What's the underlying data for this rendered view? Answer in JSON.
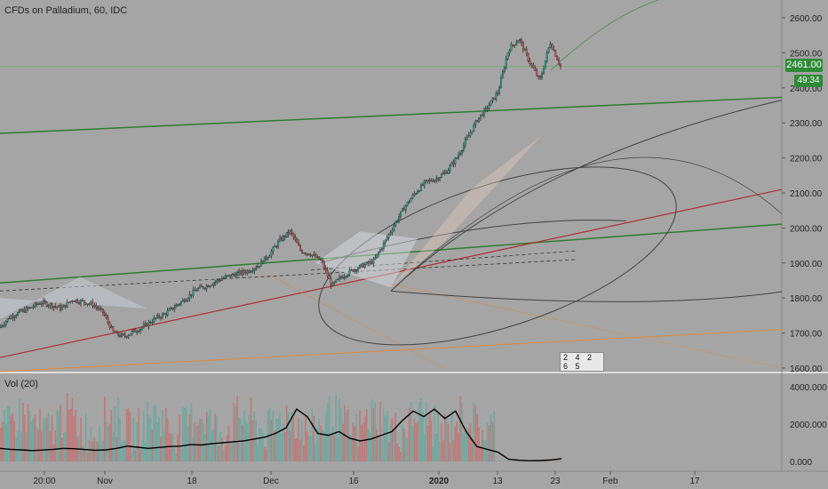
{
  "header": {
    "symbol_label": "CFDs on Palladium, 60, IDC"
  },
  "volume_pane": {
    "label": "Vol (20)"
  },
  "badges": {
    "last_price": "2461.00",
    "countdown": "49:34"
  },
  "widget": {
    "digits": "2 4 2 6 5"
  },
  "colors": {
    "background": "#a5a5a5",
    "up": "#2f9e8f",
    "down": "#d05050",
    "trend_green": "#2e7d32",
    "trend_red": "#b03030",
    "orange": "#e08a3c",
    "volume_ma": "#000000"
  },
  "chart_data": [
    {
      "type": "candlestick",
      "title": "CFDs on Palladium, 60, IDC",
      "x_ticks": [
        "20:00",
        "Nov",
        "18",
        "Dec",
        "16",
        "2020",
        "13",
        "23",
        "Feb",
        "17"
      ],
      "y_ticks": [
        "1600.00",
        "1700.00",
        "1800.00",
        "1900.00",
        "2000.00",
        "2100.00",
        "2200.00",
        "2300.00",
        "2400.00",
        "2500.00",
        "2600.00"
      ],
      "ylim": [
        1580,
        2650
      ],
      "last_price": 2461.0,
      "close_series": [
        1715,
        1745,
        1760,
        1772,
        1788,
        1780,
        1770,
        1795,
        1790,
        1782,
        1758,
        1700,
        1690,
        1705,
        1720,
        1742,
        1755,
        1778,
        1800,
        1825,
        1835,
        1850,
        1862,
        1870,
        1878,
        1895,
        1925,
        1965,
        1990,
        1935,
        1925,
        1905,
        1835,
        1862,
        1880,
        1893,
        1905,
        1955,
        2010,
        2060,
        2100,
        2130,
        2140,
        2160,
        2200,
        2255,
        2310,
        2345,
        2390,
        2510,
        2540,
        2475,
        2420,
        2530,
        2461
      ]
    },
    {
      "type": "bar",
      "title": "Vol (20)",
      "y_ticks": [
        "0.000",
        "2000.000",
        "4000.000"
      ],
      "ylim": [
        0,
        4400
      ],
      "ma_series": [
        700,
        650,
        620,
        580,
        610,
        650,
        700,
        680,
        640,
        600,
        620,
        700,
        820,
        760,
        700,
        750,
        800,
        820,
        900,
        880,
        950,
        1000,
        1050,
        1100,
        1200,
        1300,
        1500,
        1800,
        2800,
        2400,
        1500,
        1400,
        1600,
        1250,
        1100,
        1200,
        1400,
        1600,
        2200,
        2700,
        2400,
        2800,
        2300,
        2700,
        1600,
        800,
        650,
        500,
        120,
        60,
        40,
        50,
        80,
        150
      ]
    }
  ]
}
